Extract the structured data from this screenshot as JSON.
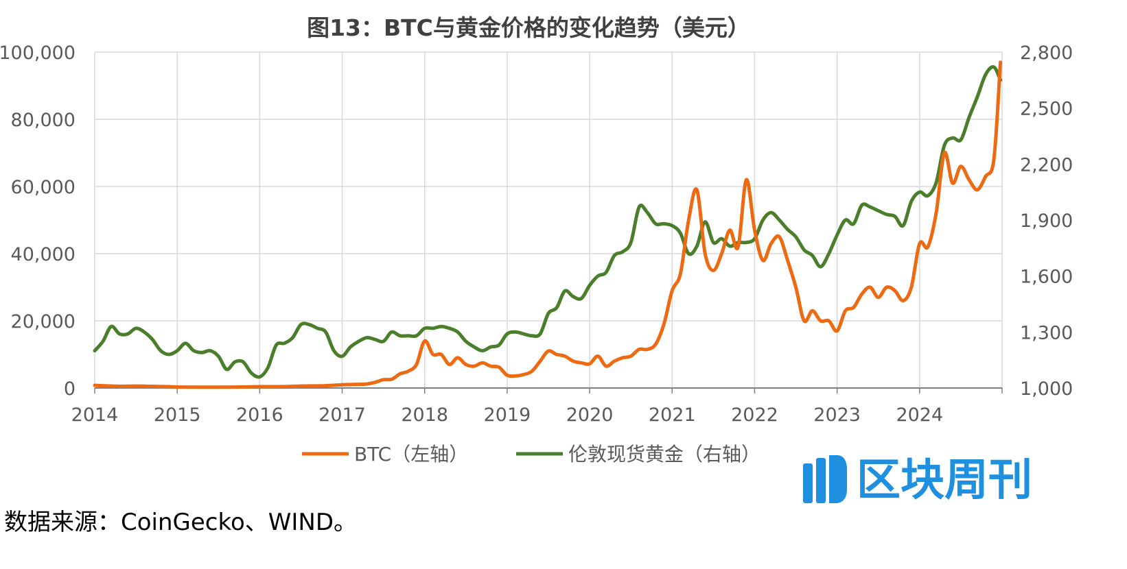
{
  "chart_data": {
    "type": "line",
    "title": "图13：BTC与黄金价格的变化趋势（美元）",
    "x_axis": {
      "ticks": [
        "2014",
        "2015",
        "2016",
        "2017",
        "2018",
        "2019",
        "2020",
        "2021",
        "2022",
        "2023",
        "2024"
      ],
      "range": [
        2014,
        2025
      ]
    },
    "y_left": {
      "ticks": [
        "0",
        "20,000",
        "40,000",
        "60,000",
        "80,000",
        "100,000"
      ],
      "range": [
        0,
        100000
      ]
    },
    "y_right": {
      "ticks": [
        "1,000",
        "1,300",
        "1,600",
        "1,900",
        "2,200",
        "2,500",
        "2,800"
      ],
      "range": [
        1000,
        2800
      ]
    },
    "grid": true,
    "legend_position": "bottom",
    "series": [
      {
        "name": "BTC（左轴）",
        "axis": "left",
        "color": "#ed6a12",
        "points": [
          [
            2014.0,
            800
          ],
          [
            2014.1,
            700
          ],
          [
            2014.3,
            500
          ],
          [
            2014.5,
            600
          ],
          [
            2014.7,
            500
          ],
          [
            2014.9,
            400
          ],
          [
            2015.0,
            300
          ],
          [
            2015.3,
            250
          ],
          [
            2015.6,
            260
          ],
          [
            2015.8,
            300
          ],
          [
            2016.0,
            400
          ],
          [
            2016.3,
            430
          ],
          [
            2016.5,
            600
          ],
          [
            2016.8,
            700
          ],
          [
            2017.0,
            950
          ],
          [
            2017.2,
            1100
          ],
          [
            2017.3,
            1200
          ],
          [
            2017.4,
            1700
          ],
          [
            2017.5,
            2500
          ],
          [
            2017.6,
            2600
          ],
          [
            2017.7,
            4200
          ],
          [
            2017.8,
            5000
          ],
          [
            2017.9,
            7000
          ],
          [
            2018.0,
            14000
          ],
          [
            2018.1,
            10000
          ],
          [
            2018.2,
            10000
          ],
          [
            2018.3,
            7000
          ],
          [
            2018.4,
            9000
          ],
          [
            2018.5,
            7000
          ],
          [
            2018.6,
            6500
          ],
          [
            2018.7,
            7500
          ],
          [
            2018.8,
            6500
          ],
          [
            2018.9,
            6200
          ],
          [
            2019.0,
            3800
          ],
          [
            2019.1,
            3600
          ],
          [
            2019.2,
            4000
          ],
          [
            2019.3,
            5000
          ],
          [
            2019.4,
            8000
          ],
          [
            2019.5,
            11000
          ],
          [
            2019.6,
            10000
          ],
          [
            2019.7,
            9500
          ],
          [
            2019.8,
            8000
          ],
          [
            2019.9,
            7500
          ],
          [
            2020.0,
            7200
          ],
          [
            2020.1,
            9500
          ],
          [
            2020.2,
            6500
          ],
          [
            2020.3,
            8000
          ],
          [
            2020.4,
            9000
          ],
          [
            2020.5,
            9500
          ],
          [
            2020.6,
            11500
          ],
          [
            2020.7,
            11500
          ],
          [
            2020.8,
            13000
          ],
          [
            2020.9,
            19000
          ],
          [
            2021.0,
            29000
          ],
          [
            2021.1,
            34000
          ],
          [
            2021.2,
            50000
          ],
          [
            2021.3,
            59000
          ],
          [
            2021.4,
            40000
          ],
          [
            2021.5,
            35000
          ],
          [
            2021.6,
            40000
          ],
          [
            2021.7,
            47000
          ],
          [
            2021.8,
            42000
          ],
          [
            2021.9,
            62000
          ],
          [
            2022.0,
            47000
          ],
          [
            2022.1,
            38000
          ],
          [
            2022.2,
            43000
          ],
          [
            2022.3,
            45000
          ],
          [
            2022.4,
            38000
          ],
          [
            2022.5,
            30000
          ],
          [
            2022.6,
            20000
          ],
          [
            2022.7,
            23000
          ],
          [
            2022.8,
            20000
          ],
          [
            2022.9,
            20000
          ],
          [
            2023.0,
            17000
          ],
          [
            2023.1,
            23000
          ],
          [
            2023.2,
            24000
          ],
          [
            2023.3,
            28000
          ],
          [
            2023.4,
            30000
          ],
          [
            2023.5,
            27000
          ],
          [
            2023.6,
            30000
          ],
          [
            2023.7,
            29000
          ],
          [
            2023.8,
            26000
          ],
          [
            2023.9,
            30000
          ],
          [
            2024.0,
            43000
          ],
          [
            2024.1,
            42000
          ],
          [
            2024.2,
            52000
          ],
          [
            2024.3,
            70000
          ],
          [
            2024.4,
            61000
          ],
          [
            2024.5,
            66000
          ],
          [
            2024.6,
            62000
          ],
          [
            2024.7,
            59000
          ],
          [
            2024.8,
            63000
          ],
          [
            2024.9,
            68000
          ],
          [
            2024.98,
            97000
          ]
        ]
      },
      {
        "name": "伦敦现货黄金（右轴）",
        "axis": "right",
        "color": "#4a7e2a",
        "points": [
          [
            2014.0,
            1200
          ],
          [
            2014.1,
            1250
          ],
          [
            2014.2,
            1330
          ],
          [
            2014.3,
            1290
          ],
          [
            2014.4,
            1290
          ],
          [
            2014.5,
            1320
          ],
          [
            2014.6,
            1300
          ],
          [
            2014.7,
            1260
          ],
          [
            2014.8,
            1200
          ],
          [
            2014.9,
            1180
          ],
          [
            2015.0,
            1200
          ],
          [
            2015.1,
            1240
          ],
          [
            2015.2,
            1200
          ],
          [
            2015.3,
            1190
          ],
          [
            2015.4,
            1200
          ],
          [
            2015.5,
            1170
          ],
          [
            2015.6,
            1100
          ],
          [
            2015.7,
            1140
          ],
          [
            2015.8,
            1140
          ],
          [
            2015.9,
            1080
          ],
          [
            2016.0,
            1060
          ],
          [
            2016.1,
            1110
          ],
          [
            2016.2,
            1230
          ],
          [
            2016.3,
            1240
          ],
          [
            2016.4,
            1270
          ],
          [
            2016.5,
            1340
          ],
          [
            2016.6,
            1340
          ],
          [
            2016.7,
            1320
          ],
          [
            2016.8,
            1300
          ],
          [
            2016.9,
            1200
          ],
          [
            2017.0,
            1170
          ],
          [
            2017.1,
            1220
          ],
          [
            2017.2,
            1250
          ],
          [
            2017.3,
            1270
          ],
          [
            2017.4,
            1260
          ],
          [
            2017.5,
            1250
          ],
          [
            2017.6,
            1300
          ],
          [
            2017.7,
            1280
          ],
          [
            2017.8,
            1280
          ],
          [
            2017.9,
            1280
          ],
          [
            2018.0,
            1320
          ],
          [
            2018.1,
            1320
          ],
          [
            2018.2,
            1330
          ],
          [
            2018.3,
            1320
          ],
          [
            2018.4,
            1300
          ],
          [
            2018.5,
            1250
          ],
          [
            2018.6,
            1220
          ],
          [
            2018.7,
            1200
          ],
          [
            2018.8,
            1220
          ],
          [
            2018.9,
            1230
          ],
          [
            2019.0,
            1290
          ],
          [
            2019.1,
            1300
          ],
          [
            2019.2,
            1290
          ],
          [
            2019.3,
            1280
          ],
          [
            2019.4,
            1290
          ],
          [
            2019.5,
            1400
          ],
          [
            2019.6,
            1430
          ],
          [
            2019.7,
            1520
          ],
          [
            2019.8,
            1490
          ],
          [
            2019.9,
            1480
          ],
          [
            2020.0,
            1550
          ],
          [
            2020.1,
            1600
          ],
          [
            2020.2,
            1620
          ],
          [
            2020.3,
            1710
          ],
          [
            2020.4,
            1730
          ],
          [
            2020.5,
            1780
          ],
          [
            2020.6,
            1970
          ],
          [
            2020.7,
            1940
          ],
          [
            2020.8,
            1880
          ],
          [
            2020.9,
            1880
          ],
          [
            2021.0,
            1870
          ],
          [
            2021.1,
            1830
          ],
          [
            2021.2,
            1720
          ],
          [
            2021.3,
            1760
          ],
          [
            2021.4,
            1890
          ],
          [
            2021.5,
            1780
          ],
          [
            2021.6,
            1800
          ],
          [
            2021.7,
            1760
          ],
          [
            2021.8,
            1780
          ],
          [
            2021.9,
            1780
          ],
          [
            2022.0,
            1800
          ],
          [
            2022.1,
            1900
          ],
          [
            2022.2,
            1940
          ],
          [
            2022.3,
            1900
          ],
          [
            2022.4,
            1850
          ],
          [
            2022.5,
            1810
          ],
          [
            2022.6,
            1740
          ],
          [
            2022.7,
            1710
          ],
          [
            2022.8,
            1650
          ],
          [
            2022.9,
            1720
          ],
          [
            2023.0,
            1820
          ],
          [
            2023.1,
            1900
          ],
          [
            2023.2,
            1880
          ],
          [
            2023.3,
            1980
          ],
          [
            2023.4,
            1970
          ],
          [
            2023.5,
            1950
          ],
          [
            2023.6,
            1930
          ],
          [
            2023.7,
            1920
          ],
          [
            2023.8,
            1870
          ],
          [
            2023.9,
            2000
          ],
          [
            2024.0,
            2050
          ],
          [
            2024.1,
            2030
          ],
          [
            2024.2,
            2100
          ],
          [
            2024.3,
            2300
          ],
          [
            2024.4,
            2340
          ],
          [
            2024.5,
            2330
          ],
          [
            2024.6,
            2450
          ],
          [
            2024.7,
            2560
          ],
          [
            2024.8,
            2680
          ],
          [
            2024.9,
            2720
          ],
          [
            2024.98,
            2650
          ]
        ]
      }
    ],
    "source": "数据来源：CoinGecko、WIND。"
  },
  "watermark": {
    "text": "区块周刊",
    "color": "#1f8fe0"
  }
}
